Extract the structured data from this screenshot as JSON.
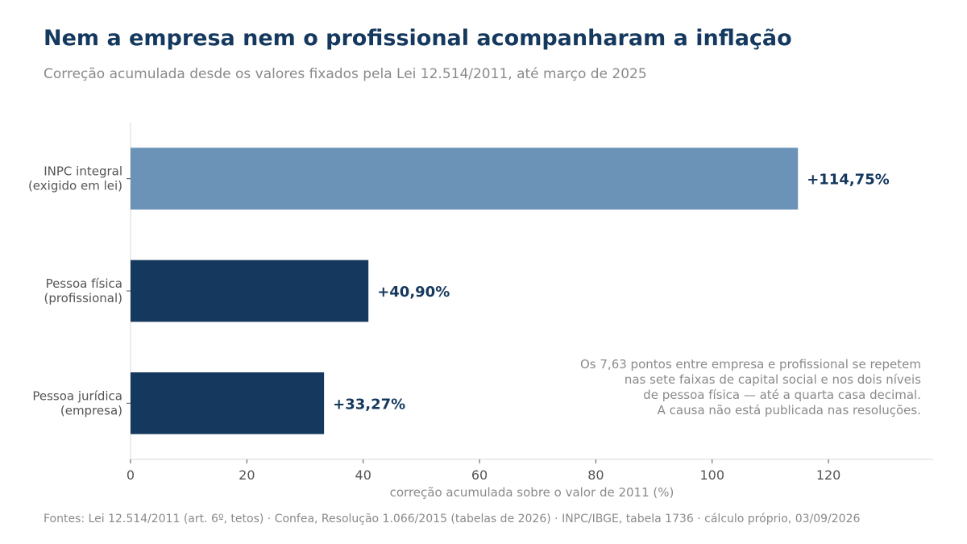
{
  "title": "Nem a empresa nem o profissional acompanharam a inflação",
  "subtitle": "Correção acumulada desde os valores fixados pela Lei 12.514/2011, até março de 2025",
  "footer": "Fontes: Lei 12.514/2011 (art. 6º, tetos) · Confea, Resolução 1.066/2015 (tabelas de 2026) · INPC/IBGE, tabela 1736 · cálculo próprio, 03/09/2026",
  "annotation": [
    "Os 7,63 pontos entre empresa e profissional se repetem",
    "nas sete faixas de capital social e nos dois níveis",
    "de pessoa física — até a quarta casa decimal.",
    "A causa não está publicada nas resoluções."
  ],
  "chart_data": {
    "type": "bar",
    "orientation": "horizontal",
    "categories": [
      [
        "INPC integral",
        "(exigido em lei)"
      ],
      [
        "Pessoa física",
        "(profissional)"
      ],
      [
        "Pessoa jurídica",
        "(empresa)"
      ]
    ],
    "values": [
      114.75,
      40.9,
      33.27
    ],
    "data_labels": [
      "+114,75%",
      "+40,90%",
      "+33,27%"
    ],
    "colors": [
      "#6b92b7",
      "#15395e",
      "#15395e"
    ],
    "xlabel": "correção acumulada sobre o valor de 2011 (%)",
    "ylabel": "",
    "xlim": [
      0,
      138
    ],
    "xticks": [
      0,
      20,
      40,
      60,
      80,
      100,
      120
    ],
    "grid": false,
    "label_color": "#15395e",
    "tick_color": "#555555",
    "axis_label_color": "#8a8a8a"
  }
}
